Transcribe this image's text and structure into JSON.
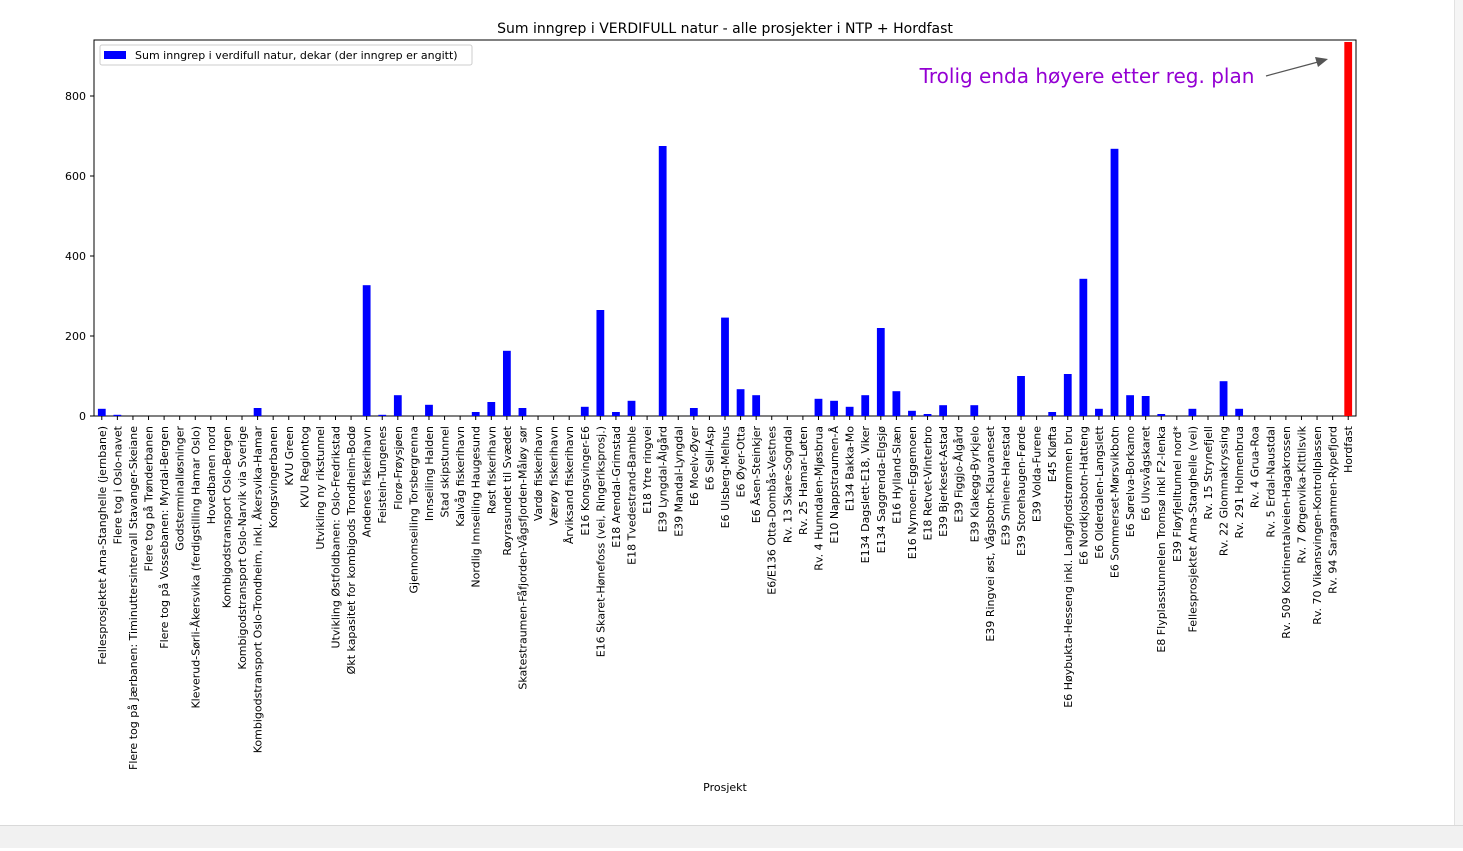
{
  "chart_data": {
    "type": "bar",
    "title": "Sum inngrep i VERDIFULL natur - alle prosjekter i NTP + Hordfast",
    "xlabel": "Prosjekt",
    "ylabel": "",
    "ylim": [
      0,
      940
    ],
    "yticks": [
      0,
      200,
      400,
      600,
      800
    ],
    "grid": false,
    "legend": {
      "placement": "top-left",
      "entries": [
        "Sum inngrep i verdifull natur, dekar (der inngrep er angitt)"
      ]
    },
    "annotation": {
      "text": "Trolig enda høyere etter reg. plan",
      "color": "#9400d3"
    },
    "colors": {
      "series": "#0000ff",
      "highlight": "#ff0000",
      "annotation": "#9400d3",
      "arrow": "#555555"
    },
    "highlight_category": "Hordfast",
    "categories": [
      "Fellesprosjektet Arna-Stanghelle (jernbane)",
      "Flere tog i Oslo-navet",
      "Flere tog på Jærbanen: Timinuttersintervall Stavanger-Skeiane",
      "Flere tog på Trønderbanen",
      "Flere tog på Vossebanen: Myrdal-Bergen",
      "Godsterminalløsninger",
      "Kleverud-Sørli-Åkersvika (ferdigstilling Hamar Oslo)",
      "Hovedbanen nord",
      "Kombigodstransport Oslo-Bergen",
      "Kombigodstransport Oslo-Narvik via Sverige",
      "Kombigodstransport Oslo-Trondheim, inkl. Åkersvika-Hamar",
      "Kongsvingerbanen",
      "KVU Green",
      "KVU Regiontog",
      "Utvikling ny rikstunnel",
      "Utvikling Østfoldbanen: Oslo-Fredrikstad",
      "Økt kapasitet for kombigods Trondheim-Bodø",
      "Andenes fiskerihavn",
      "Feistein-Tungenes",
      "Florø-Frøysjøen",
      "Gjennomseiling Torsbergrenna",
      "Innseiling Halden",
      "Stad skipstunnel",
      "Kalvåg fiskerihavn",
      "Nordlig Innseiling Haugesund",
      "Røst fiskerihavn",
      "Røyrasundet til Svædet",
      "Skatestraumen-Fåfjorden-Vågsfjorden-Måløy sør",
      "Vardø fiskerihavn",
      "Værøy fiskerihavn",
      "Årviksand fiskerihavn",
      "E16 Kongsvinger-E6",
      "E16 Skaret-Hønefoss (vei, Ringeriksprosj.)",
      "E18 Arendal-Grimstad",
      "E18 Tvedestrand-Bamble",
      "E18 Ytre ringvei",
      "E39 Lyngdal-Ålgård",
      "E39 Mandal-Lyngdal",
      "E6 Moelv-Øyer",
      "E6 Selli-Asp",
      "E6 Ulsberg-Melhus",
      "E6 Øyer-Otta",
      "E6 Åsen-Steinkjer",
      "E6/E136 Otta-Dombås-Vestnes",
      "Rv. 13 Skare-Sogndal",
      "Rv. 25 Hamar-Løten",
      "Rv. 4 Hunndalen-Mjøsbrua",
      "E10 Nappstraumen-Å",
      "E134 Bakka-Mo",
      "E134 Dagslett-E18, Viker",
      "E134 Saggrenda-Elgsjø",
      "E16 Hylland-Slæn",
      "E16 Nymoen-Eggemoen",
      "E18 Retvet-Vinterbro",
      "E39 Bjerkeset-Astad",
      "E39 Figgjo-Ålgård",
      "E39 Klakegg-Byrkjelo",
      "E39 Ringvei øst, Vågsbotn-Klauvaneset",
      "E39 Smiene-Harestad",
      "E39 Storehaugen-Førde",
      "E39 Volda-Furene",
      "E45 Kløfta",
      "E6 Høybukta-Hesseng inkl. Langfjordstrømmen bru",
      "E6 Nordkjosbotn-Hatteng",
      "E6 Olderdalen-Langslett",
      "E6 Sommerset-Mørsvikbotn",
      "E6 Sørelva-Borkamo",
      "E6 Ulvsvågskaret",
      "E8 Flyplasstunnelen Tromsø inkl F2-lenka",
      "E39 Fløyfjelltunnel nord*",
      "Fellesprosjektet Arna-Stanghelle (vei)",
      "Rv. 15 Strynefjell",
      "Rv. 22 Glommakryssing",
      "Rv. 291 Holmenbrua",
      "Rv. 4 Grua-Roa",
      "Rv. 5 Erdal-Naustdal",
      "Rv. 509 Kontinentalveien-Hagakrossen",
      "Rv. 7 Ørgenvika-Kittilsvik",
      "Rv. 70 Vikansvingen-Kontrollplassen",
      "Rv. 94 Saragammen-Rypefjord",
      "Hordfast"
    ],
    "series": [
      {
        "name": "Sum inngrep i verdifull natur, dekar (der inngrep er angitt)",
        "values": [
          18,
          3,
          0,
          0,
          0,
          0,
          0,
          0,
          0,
          0,
          20,
          0,
          0,
          0,
          0,
          0,
          0,
          327,
          3,
          52,
          0,
          28,
          0,
          0,
          10,
          35,
          163,
          20,
          0,
          0,
          0,
          23,
          265,
          10,
          38,
          0,
          675,
          0,
          20,
          0,
          246,
          67,
          52,
          0,
          0,
          0,
          43,
          38,
          23,
          52,
          220,
          62,
          13,
          5,
          27,
          0,
          27,
          0,
          0,
          100,
          0,
          10,
          105,
          343,
          18,
          668,
          52,
          50,
          5,
          0,
          18,
          0,
          87,
          18,
          0,
          0,
          0,
          0,
          0,
          0,
          935
        ]
      }
    ]
  }
}
